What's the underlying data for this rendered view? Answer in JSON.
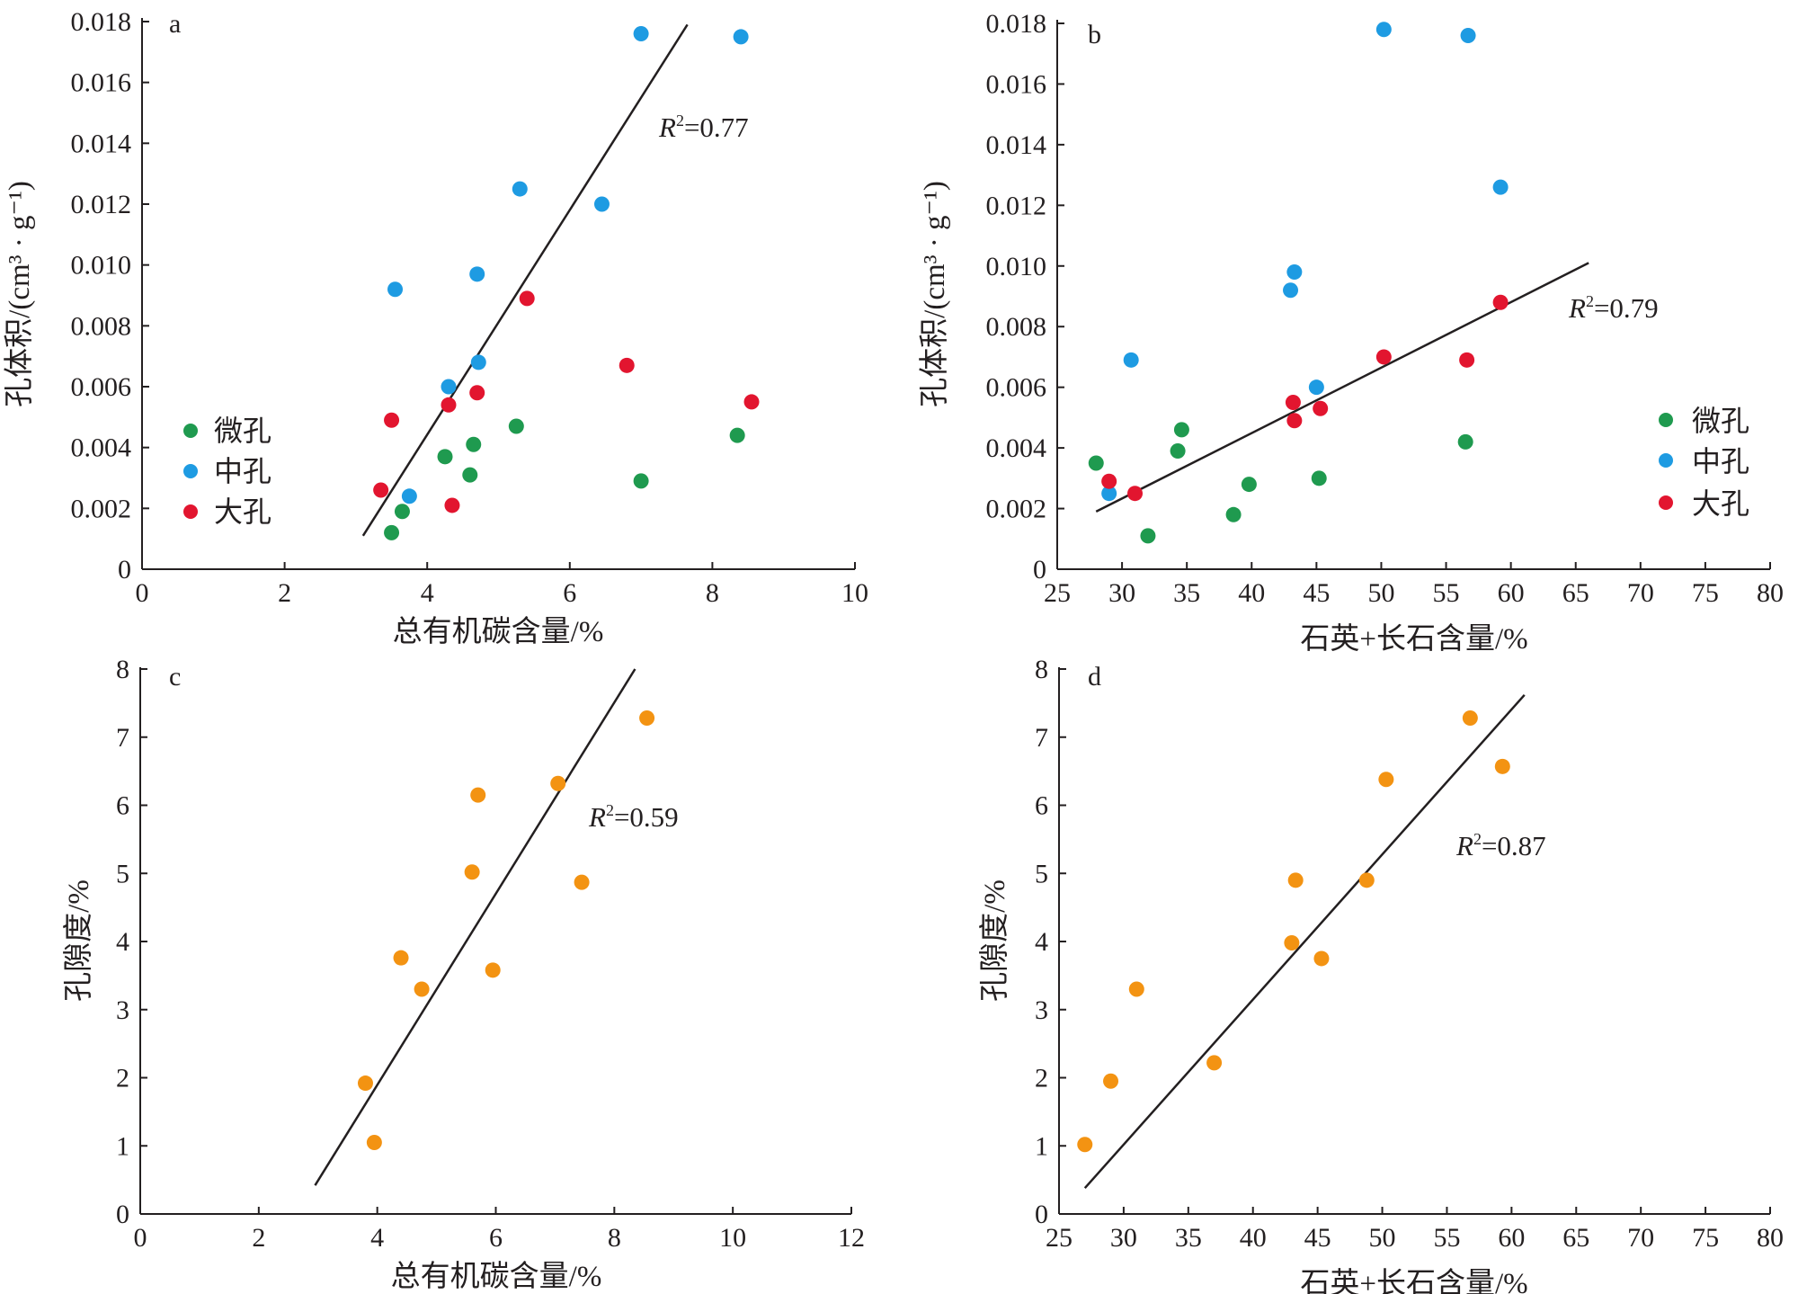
{
  "colors": {
    "micro": "#1f9a4f",
    "meso": "#1e9be2",
    "macro": "#e2152f",
    "porosity": "#f39312",
    "axis": "#231f20"
  },
  "legend": {
    "micro": "微孔",
    "meso": "中孔",
    "macro": "大孔"
  },
  "chart_data": [
    {
      "panel": "a",
      "type": "scatter",
      "xlabel": "总有机碳含量/%",
      "ylabel": "孔体积/(cm³ · g⁻¹)",
      "xlim": [
        0,
        10
      ],
      "ylim": [
        0,
        0.018
      ],
      "xticks": [
        "0",
        "2",
        "4",
        "6",
        "8",
        "10"
      ],
      "yticks": [
        "0",
        "0.002",
        "0.004",
        "0.006",
        "0.008",
        "0.010",
        "0.012",
        "0.014",
        "0.016",
        "0.018"
      ],
      "r2": "=0.77",
      "r2_prefix": "R",
      "r2_sup": "2",
      "trendline": [
        [
          3.1,
          0.0011
        ],
        [
          7.65,
          0.0179
        ]
      ],
      "legend_position": "bottom-left",
      "series": [
        {
          "key": "micro",
          "points": [
            [
              3.5,
              0.0012
            ],
            [
              3.65,
              0.0019
            ],
            [
              4.25,
              0.0037
            ],
            [
              4.6,
              0.0031
            ],
            [
              4.65,
              0.0041
            ],
            [
              5.25,
              0.0047
            ],
            [
              7.0,
              0.0029
            ],
            [
              8.35,
              0.0044
            ]
          ]
        },
        {
          "key": "meso",
          "points": [
            [
              3.55,
              0.0092
            ],
            [
              3.75,
              0.0024
            ],
            [
              4.3,
              0.006
            ],
            [
              4.7,
              0.0097
            ],
            [
              4.72,
              0.0068
            ],
            [
              5.3,
              0.0125
            ],
            [
              6.45,
              0.012
            ],
            [
              7.0,
              0.0176
            ],
            [
              8.4,
              0.0175
            ]
          ]
        },
        {
          "key": "macro",
          "points": [
            [
              3.35,
              0.0026
            ],
            [
              3.5,
              0.0049
            ],
            [
              4.3,
              0.0054
            ],
            [
              4.35,
              0.0021
            ],
            [
              4.7,
              0.0058
            ],
            [
              5.4,
              0.0089
            ],
            [
              6.8,
              0.0067
            ],
            [
              8.55,
              0.0055
            ]
          ]
        }
      ]
    },
    {
      "panel": "b",
      "type": "scatter",
      "xlabel": "石英+长石含量/%",
      "ylabel": "孔体积/(cm³ · g⁻¹)",
      "xlim": [
        25,
        80
      ],
      "ylim": [
        0,
        0.018
      ],
      "xticks": [
        "25",
        "30",
        "35",
        "40",
        "45",
        "50",
        "55",
        "60",
        "65",
        "70",
        "75",
        "80"
      ],
      "yticks": [
        "0",
        "0.002",
        "0.004",
        "0.006",
        "0.008",
        "0.010",
        "0.012",
        "0.014",
        "0.016",
        "0.018"
      ],
      "r2": "=0.79",
      "r2_prefix": "R",
      "r2_sup": "2",
      "trendline": [
        [
          28.0,
          0.0019
        ],
        [
          66.0,
          0.0101
        ]
      ],
      "legend_position": "bottom-right",
      "series": [
        {
          "key": "micro",
          "points": [
            [
              28.0,
              0.0035
            ],
            [
              32.0,
              0.0011
            ],
            [
              34.3,
              0.0039
            ],
            [
              34.6,
              0.0046
            ],
            [
              38.6,
              0.0018
            ],
            [
              39.8,
              0.0028
            ],
            [
              45.2,
              0.003
            ],
            [
              56.5,
              0.0042
            ]
          ]
        },
        {
          "key": "meso",
          "points": [
            [
              29.0,
              0.0025
            ],
            [
              30.7,
              0.0069
            ],
            [
              43.0,
              0.0092
            ],
            [
              43.3,
              0.0098
            ],
            [
              45.0,
              0.006
            ],
            [
              50.2,
              0.0178
            ],
            [
              56.7,
              0.0176
            ],
            [
              59.2,
              0.0126
            ]
          ]
        },
        {
          "key": "macro",
          "points": [
            [
              29.0,
              0.0029
            ],
            [
              31.0,
              0.0025
            ],
            [
              43.2,
              0.0055
            ],
            [
              43.3,
              0.0049
            ],
            [
              45.3,
              0.0053
            ],
            [
              50.2,
              0.007
            ],
            [
              56.6,
              0.0069
            ],
            [
              59.2,
              0.0088
            ]
          ]
        }
      ]
    },
    {
      "panel": "c",
      "type": "scatter",
      "xlabel": "总有机碳含量/%",
      "ylabel": "孔隙度/%",
      "xlim": [
        0,
        12
      ],
      "ylim": [
        0,
        8
      ],
      "xticks": [
        "0",
        "2",
        "4",
        "6",
        "8",
        "10",
        "12"
      ],
      "yticks": [
        "0",
        "1",
        "2",
        "3",
        "4",
        "5",
        "6",
        "7",
        "8"
      ],
      "r2": "=0.59",
      "r2_prefix": "R",
      "r2_sup": "2",
      "trendline": [
        [
          2.95,
          0.42
        ],
        [
          8.35,
          8.0
        ]
      ],
      "series": [
        {
          "key": "porosity",
          "points": [
            [
              3.8,
              1.92
            ],
            [
              3.95,
              1.05
            ],
            [
              4.4,
              3.76
            ],
            [
              4.75,
              3.3
            ],
            [
              5.6,
              5.02
            ],
            [
              5.7,
              6.15
            ],
            [
              5.95,
              3.58
            ],
            [
              7.05,
              6.32
            ],
            [
              7.45,
              4.87
            ],
            [
              8.55,
              7.28
            ]
          ]
        }
      ]
    },
    {
      "panel": "d",
      "type": "scatter",
      "xlabel": "石英+长石含量/%",
      "ylabel": "孔隙度/%",
      "xlim": [
        25,
        80
      ],
      "ylim": [
        0,
        8
      ],
      "xticks": [
        "25",
        "30",
        "35",
        "40",
        "45",
        "50",
        "55",
        "60",
        "65",
        "70",
        "75",
        "80"
      ],
      "yticks": [
        "0",
        "1",
        "2",
        "3",
        "4",
        "5",
        "6",
        "7",
        "8"
      ],
      "r2": "=0.87",
      "r2_prefix": "R",
      "r2_sup": "2",
      "trendline": [
        [
          27.0,
          0.38
        ],
        [
          61.0,
          7.62
        ]
      ],
      "series": [
        {
          "key": "porosity",
          "points": [
            [
              27.0,
              1.02
            ],
            [
              29.0,
              1.95
            ],
            [
              31.0,
              3.3
            ],
            [
              37.0,
              2.22
            ],
            [
              43.0,
              3.98
            ],
            [
              43.3,
              4.9
            ],
            [
              45.3,
              3.75
            ],
            [
              48.8,
              4.9
            ],
            [
              50.3,
              6.38
            ],
            [
              56.8,
              7.28
            ],
            [
              59.3,
              6.57
            ]
          ]
        }
      ]
    }
  ]
}
